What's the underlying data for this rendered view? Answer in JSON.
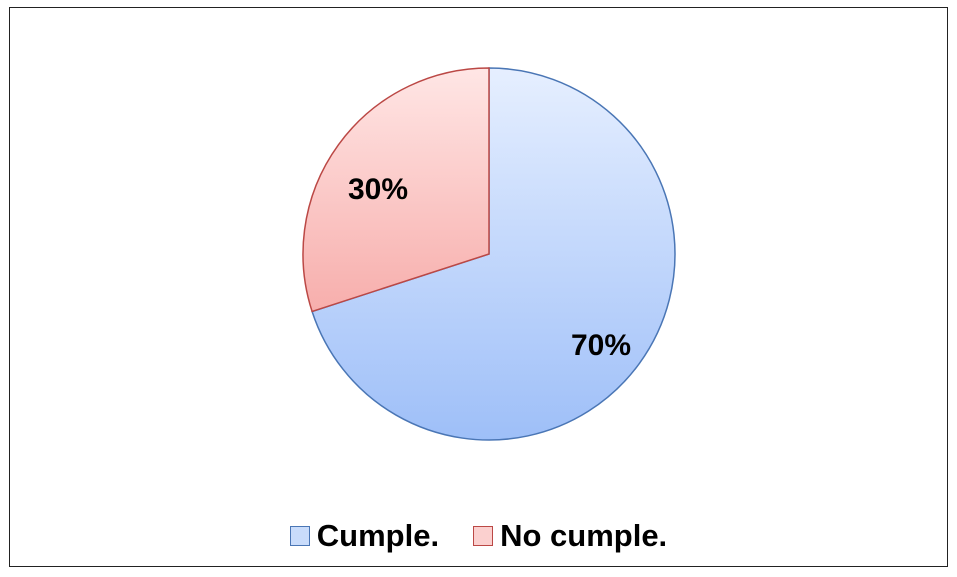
{
  "chart_data": {
    "type": "pie",
    "categories": [
      "Cumple.",
      "No cumple."
    ],
    "values": [
      70,
      30
    ],
    "data_labels": [
      "70%",
      "30%"
    ],
    "title": "",
    "legend_position": "bottom",
    "start_angle_deg": 0,
    "direction": "clockwise",
    "colors": {
      "Cumple.": {
        "fill_light": "#e6efff",
        "fill_dark": "#9ebff8",
        "stroke": "#4a76b5"
      },
      "No cumple.": {
        "fill_light": "#ffe6e5",
        "fill_dark": "#f7aeac",
        "stroke": "#bb4845"
      }
    }
  },
  "legend": {
    "items": [
      {
        "label": "Cumple.",
        "swatch_fill": "#c9dcfb",
        "swatch_stroke": "#4a76b5"
      },
      {
        "label": "No cumple.",
        "swatch_fill": "#fbd0cf",
        "swatch_stroke": "#bb4845"
      }
    ]
  }
}
